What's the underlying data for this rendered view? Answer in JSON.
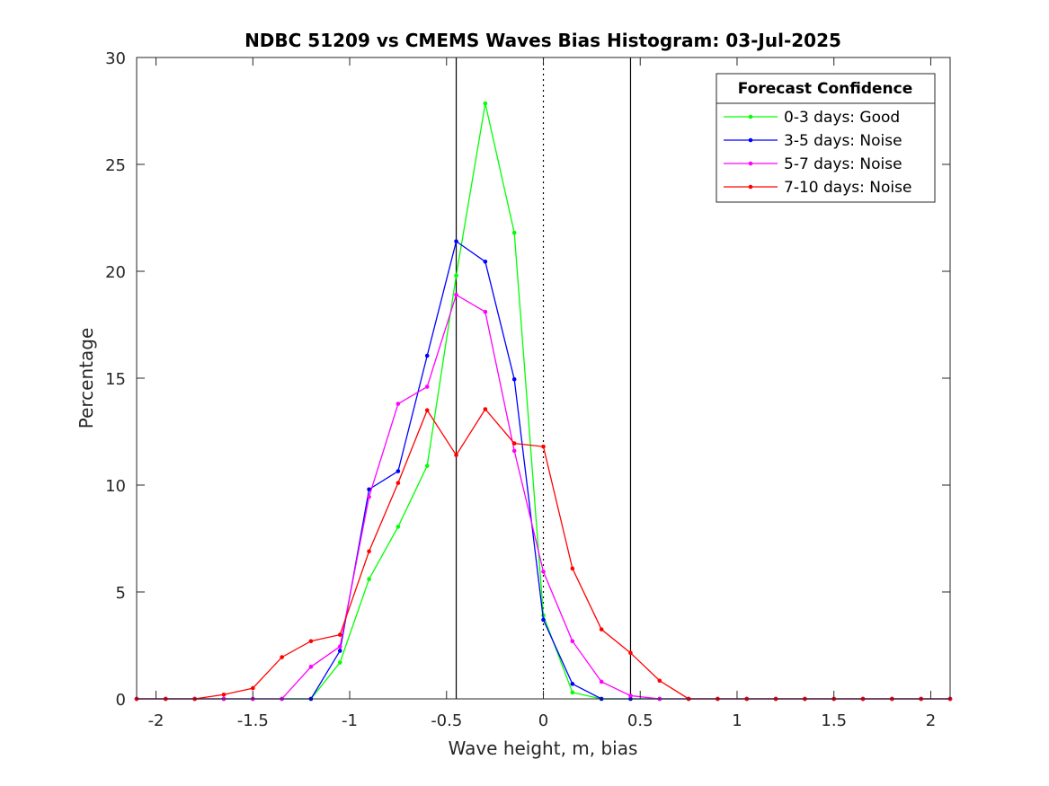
{
  "chart_data": {
    "type": "line",
    "title": "NDBC 51209 vs CMEMS Waves Bias Histogram: 03-Jul-2025",
    "xlabel": "Wave height, m, bias",
    "ylabel": "Percentage",
    "xlim": [
      -2.1,
      2.1
    ],
    "ylim": [
      0,
      30
    ],
    "xticks": [
      -2,
      -1.5,
      -1,
      -0.5,
      0,
      0.5,
      1,
      1.5,
      2
    ],
    "xtick_labels": [
      "-2",
      "-1.5",
      "-1",
      "-0.5",
      "0",
      "0.5",
      "1",
      "1.5",
      "2"
    ],
    "yticks": [
      0,
      5,
      10,
      15,
      20,
      25,
      30
    ],
    "ytick_labels": [
      "0",
      "5",
      "10",
      "15",
      "20",
      "25",
      "30"
    ],
    "grid": false,
    "legend": {
      "title": "Forecast Confidence",
      "location": "top-right"
    },
    "reference_lines": [
      {
        "x": -0.45,
        "style": "solid",
        "color": "#000000"
      },
      {
        "x": 0,
        "style": "dotted",
        "color": "#000000"
      },
      {
        "x": 0.45,
        "style": "solid",
        "color": "#000000"
      }
    ],
    "x": [
      -2.1,
      -1.95,
      -1.8,
      -1.65,
      -1.5,
      -1.35,
      -1.2,
      -1.05,
      -0.9,
      -0.75,
      -0.6,
      -0.45,
      -0.3,
      -0.15,
      0,
      0.15,
      0.3,
      0.45,
      0.6,
      0.75,
      0.9,
      1.05,
      1.2,
      1.35,
      1.5,
      1.65,
      1.8,
      1.95,
      2.1
    ],
    "series": [
      {
        "name": "0-3 days: Good",
        "color": "#00ff00",
        "values": [
          0,
          0,
          0,
          0,
          0,
          0,
          0,
          1.7,
          5.6,
          8.05,
          10.9,
          19.8,
          27.85,
          21.8,
          3.9,
          0.3,
          0,
          0,
          0,
          0,
          0,
          0,
          0,
          0,
          0,
          0,
          0,
          0,
          0
        ]
      },
      {
        "name": "3-5 days: Noise",
        "color": "#0000ff",
        "values": [
          0,
          0,
          0,
          0,
          0,
          0,
          0,
          2.25,
          9.8,
          10.65,
          16.05,
          21.4,
          20.45,
          14.95,
          3.7,
          0.7,
          0,
          0,
          0,
          0,
          0,
          0,
          0,
          0,
          0,
          0,
          0,
          0,
          0
        ]
      },
      {
        "name": "5-7 days: Noise",
        "color": "#ff00ff",
        "values": [
          0,
          0,
          0,
          0,
          0,
          0,
          1.5,
          2.45,
          9.45,
          13.8,
          14.6,
          18.9,
          18.1,
          11.6,
          5.95,
          2.7,
          0.8,
          0.15,
          0,
          0,
          0,
          0,
          0,
          0,
          0,
          0,
          0,
          0,
          0
        ]
      },
      {
        "name": "7-10 days: Noise",
        "color": "#ff0000",
        "values": [
          0,
          0,
          0,
          0.2,
          0.5,
          1.95,
          2.7,
          3.0,
          6.9,
          10.1,
          13.5,
          11.4,
          13.55,
          11.95,
          11.8,
          6.1,
          3.25,
          2.15,
          0.85,
          0,
          0,
          0,
          0,
          0,
          0,
          0,
          0,
          0,
          0
        ]
      }
    ]
  }
}
